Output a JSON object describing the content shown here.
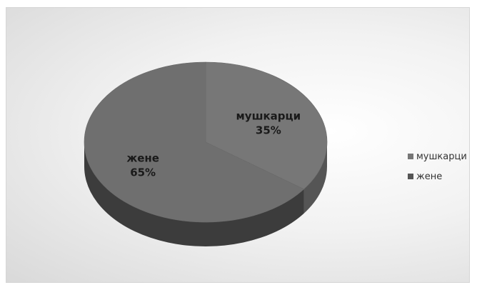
{
  "chart_data": {
    "type": "pie",
    "variant": "3d",
    "title": "",
    "slices": [
      {
        "label": "мушкарци",
        "value": 35,
        "value_label": "35%",
        "color": "#777777",
        "side_color": "#555555"
      },
      {
        "label": "жене",
        "value": 65,
        "value_label": "65%",
        "color": "#6f6f6f",
        "side_color": "#3c3c3c"
      }
    ],
    "legend": {
      "placement": "right",
      "items": [
        {
          "label": "мушкарци",
          "color": "#777777"
        },
        {
          "label": "жене",
          "color": "#555555"
        }
      ]
    },
    "background": {
      "frame_border": "#d6d6d6"
    }
  }
}
